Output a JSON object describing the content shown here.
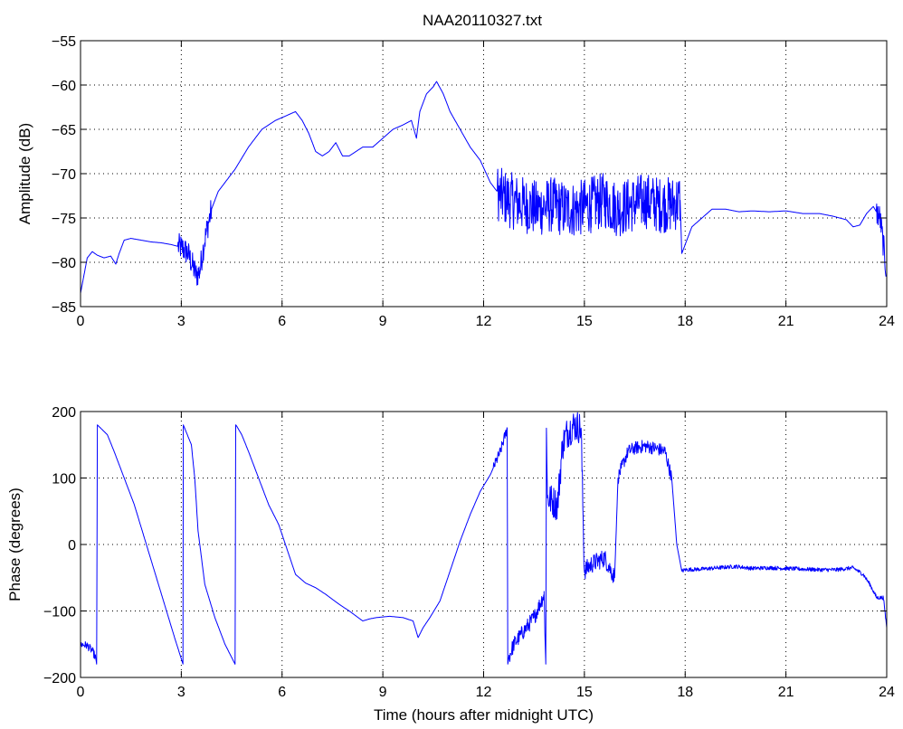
{
  "figure": {
    "title": "NAA20110327.txt"
  },
  "chart_data": [
    {
      "type": "line",
      "title": "NAA20110327.txt",
      "xlabel": "",
      "ylabel": "Amplitude (dB)",
      "xlim": [
        0,
        24
      ],
      "ylim": [
        -85,
        -55
      ],
      "xticks": [
        0,
        3,
        6,
        9,
        12,
        15,
        18,
        21,
        24
      ],
      "yticks": [
        -85,
        -80,
        -75,
        -70,
        -65,
        -60,
        -55
      ],
      "xtick_labels": [
        "0",
        "3",
        "6",
        "9",
        "12",
        "15",
        "18",
        "21",
        "24"
      ],
      "ytick_labels": [
        "−85",
        "−80",
        "−75",
        "−70",
        "−65",
        "−60",
        "−55"
      ],
      "grid": true,
      "color": "#0000ff",
      "series": [
        {
          "x": [
            0,
            0.1,
            0.2,
            0.35,
            0.5,
            0.7,
            0.9,
            1.05,
            1.15,
            1.3,
            1.5,
            1.8,
            2.1,
            2.4,
            2.7,
            3.0,
            3.2,
            3.35,
            3.45,
            3.55,
            3.65,
            3.75,
            3.9,
            4.1,
            4.3,
            4.6,
            5.0,
            5.4,
            5.8,
            6.1,
            6.4,
            6.6,
            6.8,
            7.0,
            7.2,
            7.4,
            7.6,
            7.8,
            8.0,
            8.2,
            8.4,
            8.7,
            9.0,
            9.3,
            9.6,
            9.85,
            10.0,
            10.1,
            10.3,
            10.5,
            10.6,
            10.8,
            11.0,
            11.3,
            11.6,
            11.9,
            12.2,
            12.5,
            12.8,
            13.2,
            13.6,
            14.0,
            14.4,
            14.8,
            15.2,
            15.6,
            16.0,
            16.4,
            16.8,
            17.2,
            17.6,
            17.85,
            17.9,
            18.0,
            18.2,
            18.5,
            18.8,
            19.2,
            19.6,
            20.0,
            20.5,
            21.0,
            21.5,
            22.0,
            22.4,
            22.8,
            23.0,
            23.2,
            23.4,
            23.6,
            23.8,
            23.9,
            24.0
          ],
          "y": [
            -83.5,
            -81.5,
            -79.5,
            -78.8,
            -79.2,
            -79.5,
            -79.3,
            -80.2,
            -79.0,
            -77.5,
            -77.3,
            -77.5,
            -77.7,
            -77.8,
            -78.0,
            -78.3,
            -79.0,
            -80.5,
            -81.5,
            -81.0,
            -78.5,
            -76.5,
            -74.0,
            -72.0,
            -71.0,
            -69.5,
            -67.0,
            -65.0,
            -64.0,
            -63.5,
            -63.0,
            -64.0,
            -65.5,
            -67.5,
            -68.0,
            -67.5,
            -66.5,
            -68.0,
            -68.0,
            -67.5,
            -67.0,
            -67.0,
            -66.0,
            -65.0,
            -64.5,
            -64.0,
            -66.0,
            -63.0,
            -61.0,
            -60.2,
            -59.6,
            -61.0,
            -63.0,
            -65.0,
            -67.0,
            -68.5,
            -71.0,
            -72.5,
            -73.0,
            -73.5,
            -74.0,
            -73.5,
            -74.0,
            -74.0,
            -73.5,
            -73.0,
            -74.0,
            -73.5,
            -73.0,
            -73.5,
            -73.5,
            -73.0,
            -79.0,
            -78.0,
            -76.0,
            -75.0,
            -74.0,
            -74.0,
            -74.3,
            -74.2,
            -74.3,
            -74.2,
            -74.5,
            -74.5,
            -74.8,
            -75.2,
            -76.0,
            -75.8,
            -74.5,
            -73.7,
            -75.0,
            -78.0,
            -81.5
          ],
          "noise": [
            {
              "x": [
                2.9,
                3.9
              ],
              "amp": 1.5
            },
            {
              "x": [
                12.4,
                17.85
              ],
              "amp": 3.2
            },
            {
              "x": [
                23.7,
                24.0
              ],
              "amp": 1.5
            }
          ]
        }
      ]
    },
    {
      "type": "line",
      "title": "",
      "xlabel": "Time (hours after midnight UTC)",
      "ylabel": "Phase (degrees)",
      "xlim": [
        0,
        24
      ],
      "ylim": [
        -200,
        200
      ],
      "xticks": [
        0,
        3,
        6,
        9,
        12,
        15,
        18,
        21,
        24
      ],
      "yticks": [
        -200,
        -100,
        0,
        100,
        200
      ],
      "xtick_labels": [
        "0",
        "3",
        "6",
        "9",
        "12",
        "15",
        "18",
        "21",
        "24"
      ],
      "ytick_labels": [
        "−200",
        "−100",
        "0",
        "100",
        "200"
      ],
      "grid": true,
      "color": "#0000ff",
      "series": [
        {
          "x": [
            0,
            0.2,
            0.35,
            0.45,
            0.48,
            0.5,
            0.6,
            0.8,
            1.0,
            1.3,
            1.6,
            1.9,
            2.2,
            2.5,
            2.8,
            3.05,
            3.06,
            3.1,
            3.3,
            3.4,
            3.5,
            3.7,
            4.0,
            4.3,
            4.6,
            4.62,
            4.65,
            4.8,
            5.0,
            5.3,
            5.6,
            5.9,
            6.1,
            6.4,
            6.7,
            7.0,
            7.3,
            7.7,
            8.0,
            8.4,
            8.6,
            8.8,
            9.2,
            9.6,
            9.9,
            10.05,
            10.2,
            10.4,
            10.7,
            11.0,
            11.3,
            11.6,
            11.9,
            12.2,
            12.5,
            12.7,
            12.72,
            12.75,
            12.9,
            13.2,
            13.5,
            13.8,
            13.85,
            13.87,
            13.9,
            14.2,
            14.35,
            14.5,
            14.7,
            14.9,
            15.0,
            15.2,
            15.6,
            15.9,
            16.0,
            16.1,
            16.3,
            16.5,
            16.8,
            17.1,
            17.4,
            17.6,
            17.75,
            17.9,
            18.0,
            18.5,
            19.0,
            19.5,
            20.0,
            20.5,
            21.0,
            21.5,
            22.0,
            22.5,
            23.0,
            23.3,
            23.5,
            23.7,
            23.9,
            24.0
          ],
          "y": [
            -150,
            -152,
            -160,
            -170,
            -180,
            180,
            175,
            165,
            140,
            100,
            60,
            10,
            -40,
            -90,
            -140,
            -180,
            180,
            175,
            150,
            100,
            20,
            -60,
            -110,
            -150,
            -180,
            180,
            178,
            165,
            140,
            100,
            60,
            30,
            0,
            -45,
            -58,
            -65,
            -75,
            -90,
            -100,
            -115,
            -112,
            -110,
            -108,
            -110,
            -115,
            -140,
            -125,
            -110,
            -85,
            -40,
            5,
            45,
            80,
            105,
            140,
            175,
            -180,
            -170,
            -150,
            -130,
            -110,
            -75,
            -180,
            175,
            70,
            60,
            150,
            170,
            180,
            175,
            -40,
            -30,
            -20,
            -50,
            100,
            115,
            140,
            145,
            148,
            145,
            140,
            100,
            0,
            -40,
            -38,
            -37,
            -35,
            -33,
            -36,
            -35,
            -36,
            -37,
            -38,
            -38,
            -35,
            -45,
            -60,
            -80,
            -80,
            -125
          ],
          "noise": [
            {
              "x": [
                0,
                0.45
              ],
              "amp": 6
            },
            {
              "x": [
                12.3,
                12.7
              ],
              "amp": 8
            },
            {
              "x": [
                12.75,
                13.85
              ],
              "amp": 12
            },
            {
              "x": [
                13.9,
                15.0
              ],
              "amp": 25
            },
            {
              "x": [
                15.0,
                15.9
              ],
              "amp": 14
            },
            {
              "x": [
                16.0,
                17.6
              ],
              "amp": 10
            },
            {
              "x": [
                17.9,
                24.0
              ],
              "amp": 3
            }
          ]
        }
      ]
    }
  ]
}
